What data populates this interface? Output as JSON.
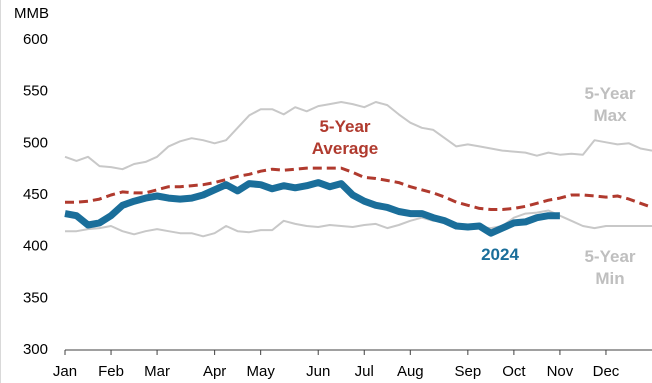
{
  "chart_data": {
    "type": "line",
    "y_label": "MMB",
    "categories": [
      "Jan",
      null,
      null,
      null,
      "Feb",
      null,
      null,
      null,
      "Mar",
      null,
      null,
      null,
      null,
      "Apr",
      null,
      null,
      null,
      "May",
      null,
      null,
      null,
      null,
      "Jun",
      null,
      null,
      null,
      "Jul",
      null,
      null,
      null,
      "Aug",
      null,
      null,
      null,
      null,
      "Sep",
      null,
      null,
      null,
      "Oct",
      null,
      null,
      null,
      "Nov",
      null,
      null,
      null,
      "Dec",
      null,
      null,
      null,
      null
    ],
    "ylim": [
      300,
      600
    ],
    "yticks": [
      300,
      350,
      400,
      450,
      500,
      550,
      600
    ],
    "grid": false,
    "series": [
      {
        "name": "5-Year Max",
        "color": "#c8c8c8",
        "values": [
          487,
          483,
          487,
          478,
          477,
          475,
          480,
          482,
          487,
          497,
          502,
          505,
          503,
          500,
          503,
          515,
          527,
          533,
          533,
          528,
          535,
          531,
          536,
          538,
          540,
          538,
          535,
          540,
          537,
          528,
          520,
          515,
          513,
          505,
          497,
          499,
          497,
          495,
          493,
          492,
          491,
          488,
          491,
          489,
          490,
          489,
          503,
          501,
          499,
          500,
          495,
          493
        ]
      },
      {
        "name": "5-Year Min",
        "color": "#c8c8c8",
        "values": [
          415,
          415,
          417,
          418,
          420,
          415,
          412,
          415,
          417,
          415,
          413,
          413,
          410,
          413,
          420,
          415,
          414,
          416,
          416,
          425,
          422,
          420,
          419,
          421,
          420,
          419,
          421,
          422,
          418,
          421,
          425,
          428,
          425,
          425,
          420,
          418,
          419,
          418,
          420,
          428,
          432,
          433,
          435,
          430,
          425,
          420,
          418,
          420,
          420,
          420,
          420,
          420
        ]
      },
      {
        "name": "5-Year Average",
        "color": "#b03a2e",
        "dashed": true,
        "values": [
          443,
          443,
          444,
          446,
          450,
          453,
          452,
          452,
          455,
          458,
          458,
          459,
          460,
          462,
          465,
          468,
          470,
          473,
          475,
          474,
          475,
          476,
          476,
          476,
          476,
          472,
          467,
          466,
          464,
          462,
          458,
          455,
          452,
          448,
          443,
          440,
          437,
          436,
          436,
          437,
          439,
          442,
          445,
          447,
          450,
          450,
          449,
          448,
          449,
          446,
          442,
          438
        ]
      },
      {
        "name": "2024",
        "color": "#1a6e9a",
        "values": [
          432,
          430,
          421,
          423,
          430,
          440,
          444,
          447,
          449,
          447,
          446,
          447,
          450,
          455,
          460,
          454,
          461,
          460,
          456,
          459,
          457,
          459,
          462,
          458,
          461,
          450,
          444,
          440,
          438,
          434,
          432,
          432,
          428,
          425,
          420,
          419,
          420,
          413,
          418,
          423,
          424,
          428,
          430,
          430,
          null,
          null,
          null,
          null,
          null,
          null,
          null,
          null
        ]
      }
    ]
  }
}
